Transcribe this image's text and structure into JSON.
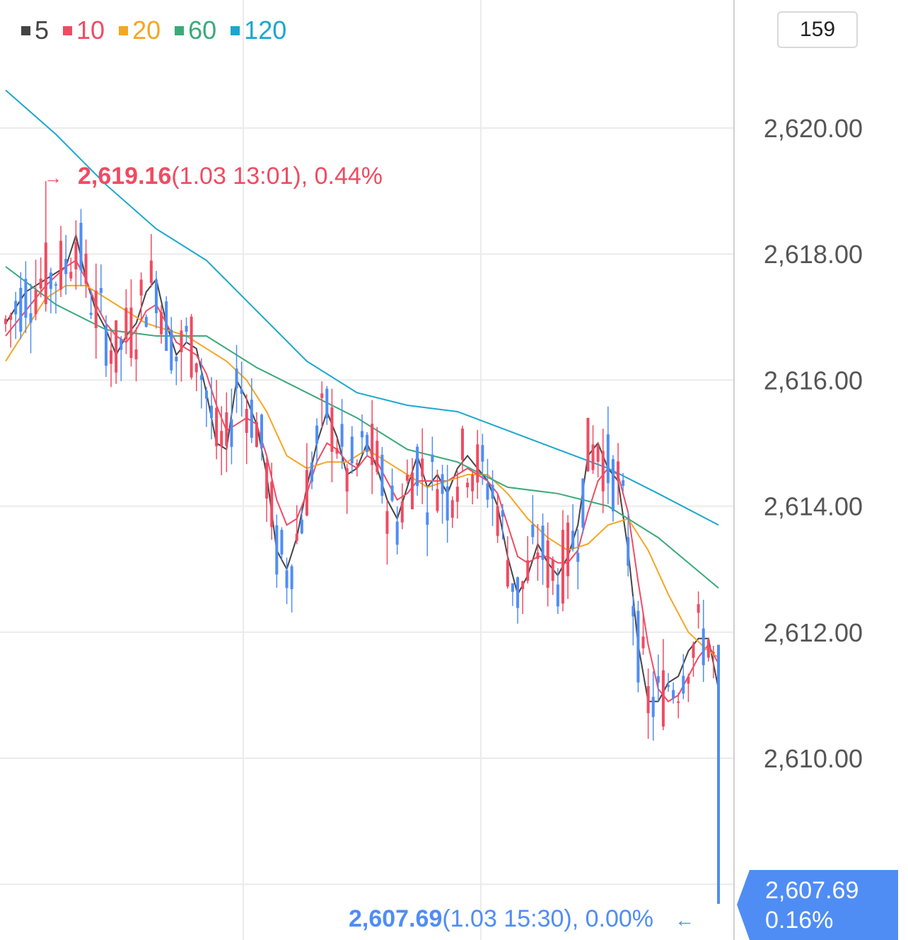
{
  "legend": [
    {
      "label": "5",
      "color": "#444444"
    },
    {
      "label": "10",
      "color": "#f04b62"
    },
    {
      "label": "20",
      "color": "#f5a623"
    },
    {
      "label": "60",
      "color": "#3aaa78"
    },
    {
      "label": "120",
      "color": "#1aa7cf"
    }
  ],
  "counter": "159",
  "high_annotation": {
    "arrow": "→",
    "value": "2,619.16",
    "detail": "(1.03 13:01), 0.44%"
  },
  "low_annotation": {
    "value": "2,607.69",
    "detail": "(1.03 15:30), 0.00%",
    "arrow": "←"
  },
  "current_price": {
    "value": "2,607.69",
    "change": "0.16%",
    "color": "#4f8df5"
  },
  "colors": {
    "up": "#f04b62",
    "down": "#4f8df5",
    "grid": "#ebebeb"
  },
  "chart_data": {
    "type": "candlestick",
    "y_axis": {
      "ticks": [
        "2,620.00",
        "2,618.00",
        "2,616.00",
        "2,614.00",
        "2,612.00",
        "2,610.00"
      ],
      "tick_values": [
        2620,
        2618,
        2616,
        2614,
        2612,
        2610
      ],
      "ylim": [
        2607.3,
        2621.8
      ]
    },
    "x_axis": {
      "vertical_grid_count": 2
    },
    "moving_averages": [
      {
        "name": "5",
        "color": "#444444",
        "points": [
          [
            0,
            2616.9
          ],
          [
            4,
            2617.4
          ],
          [
            8,
            2617.6
          ],
          [
            12,
            2617.8
          ],
          [
            14,
            2618.3
          ],
          [
            16,
            2617.6
          ],
          [
            18,
            2617.1
          ],
          [
            20,
            2616.8
          ],
          [
            22,
            2616.4
          ],
          [
            24,
            2616.7
          ],
          [
            26,
            2616.9
          ],
          [
            28,
            2617.4
          ],
          [
            30,
            2617.6
          ],
          [
            32,
            2616.9
          ],
          [
            34,
            2616.4
          ],
          [
            36,
            2616.6
          ],
          [
            38,
            2616.5
          ],
          [
            40,
            2615.8
          ],
          [
            42,
            2615.0
          ],
          [
            44,
            2614.9
          ],
          [
            46,
            2616.0
          ],
          [
            48,
            2615.7
          ],
          [
            50,
            2615.3
          ],
          [
            52,
            2614.5
          ],
          [
            54,
            2613.3
          ],
          [
            56,
            2613.0
          ],
          [
            58,
            2613.5
          ],
          [
            60,
            2614.3
          ],
          [
            62,
            2615.0
          ],
          [
            64,
            2615.5
          ],
          [
            66,
            2615.1
          ],
          [
            68,
            2614.5
          ],
          [
            70,
            2614.6
          ],
          [
            72,
            2615.0
          ],
          [
            74,
            2614.6
          ],
          [
            76,
            2614.1
          ],
          [
            78,
            2613.8
          ],
          [
            80,
            2614.3
          ],
          [
            82,
            2614.8
          ],
          [
            84,
            2614.3
          ],
          [
            86,
            2614.5
          ],
          [
            88,
            2614.2
          ],
          [
            90,
            2614.6
          ],
          [
            92,
            2614.8
          ],
          [
            94,
            2614.6
          ],
          [
            96,
            2614.4
          ],
          [
            98,
            2614.0
          ],
          [
            100,
            2613.2
          ],
          [
            102,
            2612.6
          ],
          [
            104,
            2612.9
          ],
          [
            106,
            2613.4
          ],
          [
            108,
            2613.1
          ],
          [
            110,
            2612.9
          ],
          [
            112,
            2613.2
          ],
          [
            114,
            2613.7
          ],
          [
            116,
            2614.8
          ],
          [
            118,
            2615.0
          ],
          [
            120,
            2614.6
          ],
          [
            122,
            2614.4
          ],
          [
            124,
            2613.3
          ],
          [
            126,
            2611.8
          ],
          [
            128,
            2610.9
          ],
          [
            130,
            2610.9
          ],
          [
            132,
            2611.2
          ],
          [
            134,
            2611.3
          ],
          [
            136,
            2611.7
          ],
          [
            138,
            2611.9
          ],
          [
            140,
            2611.9
          ],
          [
            142,
            2611.1
          ]
        ]
      },
      {
        "name": "10",
        "color": "#f04b62",
        "points": [
          [
            0,
            2616.7
          ],
          [
            4,
            2617.1
          ],
          [
            8,
            2617.5
          ],
          [
            12,
            2617.8
          ],
          [
            14,
            2617.9
          ],
          [
            16,
            2617.6
          ],
          [
            18,
            2617.2
          ],
          [
            20,
            2616.9
          ],
          [
            22,
            2616.7
          ],
          [
            24,
            2616.6
          ],
          [
            26,
            2616.8
          ],
          [
            28,
            2617.1
          ],
          [
            30,
            2617.2
          ],
          [
            32,
            2616.9
          ],
          [
            34,
            2616.6
          ],
          [
            36,
            2616.5
          ],
          [
            38,
            2616.4
          ],
          [
            40,
            2616.1
          ],
          [
            42,
            2615.6
          ],
          [
            44,
            2615.2
          ],
          [
            46,
            2615.3
          ],
          [
            48,
            2615.4
          ],
          [
            50,
            2615.3
          ],
          [
            52,
            2614.8
          ],
          [
            54,
            2614.1
          ],
          [
            56,
            2613.7
          ],
          [
            58,
            2613.8
          ],
          [
            60,
            2614.2
          ],
          [
            62,
            2614.7
          ],
          [
            64,
            2615.0
          ],
          [
            66,
            2614.9
          ],
          [
            68,
            2614.7
          ],
          [
            70,
            2614.6
          ],
          [
            72,
            2614.8
          ],
          [
            74,
            2614.7
          ],
          [
            76,
            2614.4
          ],
          [
            78,
            2614.1
          ],
          [
            80,
            2614.2
          ],
          [
            82,
            2614.4
          ],
          [
            84,
            2614.4
          ],
          [
            86,
            2614.4
          ],
          [
            88,
            2614.4
          ],
          [
            90,
            2614.5
          ],
          [
            92,
            2614.6
          ],
          [
            94,
            2614.5
          ],
          [
            96,
            2614.4
          ],
          [
            98,
            2614.2
          ],
          [
            100,
            2613.7
          ],
          [
            102,
            2613.2
          ],
          [
            104,
            2613.1
          ],
          [
            106,
            2613.2
          ],
          [
            108,
            2613.2
          ],
          [
            110,
            2613.1
          ],
          [
            112,
            2613.1
          ],
          [
            114,
            2613.3
          ],
          [
            116,
            2613.9
          ],
          [
            118,
            2614.4
          ],
          [
            120,
            2614.6
          ],
          [
            122,
            2614.5
          ],
          [
            124,
            2613.9
          ],
          [
            126,
            2612.8
          ],
          [
            128,
            2611.8
          ],
          [
            130,
            2611.1
          ],
          [
            132,
            2610.9
          ],
          [
            134,
            2611.0
          ],
          [
            136,
            2611.3
          ],
          [
            138,
            2611.6
          ],
          [
            140,
            2611.8
          ],
          [
            142,
            2611.5
          ]
        ]
      },
      {
        "name": "20",
        "color": "#f5a623",
        "points": [
          [
            0,
            2616.3
          ],
          [
            4,
            2616.8
          ],
          [
            8,
            2617.3
          ],
          [
            12,
            2617.5
          ],
          [
            16,
            2617.5
          ],
          [
            20,
            2617.3
          ],
          [
            24,
            2617.1
          ],
          [
            28,
            2616.9
          ],
          [
            32,
            2616.8
          ],
          [
            36,
            2616.7
          ],
          [
            40,
            2616.5
          ],
          [
            44,
            2616.3
          ],
          [
            48,
            2616.0
          ],
          [
            52,
            2615.5
          ],
          [
            56,
            2614.8
          ],
          [
            60,
            2614.6
          ],
          [
            64,
            2614.7
          ],
          [
            68,
            2614.7
          ],
          [
            72,
            2614.9
          ],
          [
            76,
            2614.7
          ],
          [
            80,
            2614.5
          ],
          [
            84,
            2614.3
          ],
          [
            88,
            2614.4
          ],
          [
            92,
            2614.5
          ],
          [
            96,
            2614.5
          ],
          [
            100,
            2614.2
          ],
          [
            104,
            2613.8
          ],
          [
            108,
            2613.5
          ],
          [
            112,
            2613.3
          ],
          [
            116,
            2613.4
          ],
          [
            120,
            2613.7
          ],
          [
            124,
            2613.8
          ],
          [
            128,
            2613.3
          ],
          [
            132,
            2612.6
          ],
          [
            136,
            2612.0
          ],
          [
            140,
            2611.7
          ],
          [
            142,
            2611.6
          ]
        ]
      },
      {
        "name": "60",
        "color": "#3aaa78",
        "points": [
          [
            0,
            2617.8
          ],
          [
            10,
            2617.2
          ],
          [
            20,
            2616.8
          ],
          [
            30,
            2616.7
          ],
          [
            40,
            2616.7
          ],
          [
            50,
            2616.2
          ],
          [
            60,
            2615.8
          ],
          [
            70,
            2615.4
          ],
          [
            80,
            2614.9
          ],
          [
            90,
            2614.7
          ],
          [
            100,
            2614.3
          ],
          [
            110,
            2614.2
          ],
          [
            120,
            2614.0
          ],
          [
            130,
            2613.5
          ],
          [
            142,
            2612.7
          ]
        ]
      },
      {
        "name": "120",
        "color": "#1aa7cf",
        "points": [
          [
            0,
            2620.6
          ],
          [
            10,
            2619.9
          ],
          [
            20,
            2619.1
          ],
          [
            30,
            2618.4
          ],
          [
            40,
            2617.9
          ],
          [
            50,
            2617.1
          ],
          [
            60,
            2616.3
          ],
          [
            70,
            2615.8
          ],
          [
            80,
            2615.6
          ],
          [
            90,
            2615.5
          ],
          [
            100,
            2615.2
          ],
          [
            110,
            2614.9
          ],
          [
            120,
            2614.6
          ],
          [
            130,
            2614.2
          ],
          [
            142,
            2613.7
          ]
        ]
      }
    ],
    "candle_count": 143,
    "high": {
      "value": 2619.16,
      "index": 8,
      "label": "2,619.16",
      "time": "1.03 13:01",
      "change": "0.44%"
    },
    "low": {
      "value": 2607.69,
      "index": 142,
      "label": "2,607.69",
      "time": "1.03 15:30",
      "change": "0.00%"
    },
    "last": {
      "value": 2607.69,
      "change": "0.16%"
    }
  }
}
